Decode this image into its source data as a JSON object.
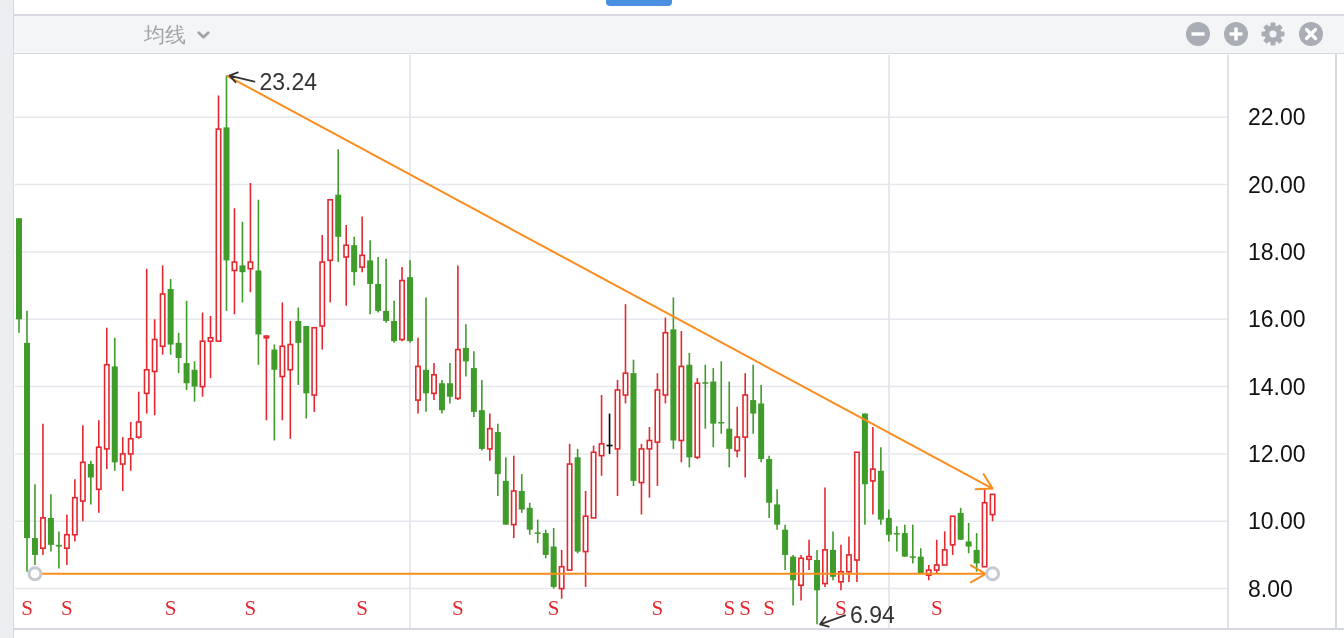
{
  "chart_data": {
    "type": "candlestick",
    "categories": [
      null,
      null,
      null,
      null,
      null,
      null,
      null,
      null,
      null,
      null,
      null,
      null,
      null,
      null,
      null,
      null,
      null,
      null,
      null,
      null,
      null,
      null,
      null,
      null,
      null,
      null,
      null,
      null,
      null,
      null,
      null,
      null,
      null,
      null,
      null,
      null,
      null,
      null,
      null,
      null,
      null,
      null,
      null,
      null,
      null,
      null,
      null,
      null,
      null,
      null,
      null,
      null,
      null,
      null,
      null,
      null,
      null,
      null,
      null,
      null,
      null,
      null,
      null,
      null,
      null,
      null,
      null,
      null,
      null,
      null,
      null,
      null,
      null,
      null,
      null,
      null,
      null,
      null,
      null,
      null,
      null,
      null,
      null,
      null,
      null,
      null,
      null,
      null,
      null,
      null,
      null,
      null,
      null,
      null,
      null,
      null,
      null,
      null,
      null,
      null,
      null,
      null,
      null,
      null,
      null,
      null,
      null,
      null,
      null,
      null,
      null,
      null,
      null,
      null,
      null,
      null,
      null,
      null,
      null,
      null,
      null,
      null,
      null,
      null,
      null,
      null,
      null,
      null,
      null,
      null,
      null,
      null,
      null,
      null,
      null,
      null,
      null,
      null,
      null,
      null,
      null,
      null,
      null,
      null,
      null,
      null,
      null,
      null,
      null,
      null,
      null,
      null
    ],
    "ohlc": [
      [
        19.0,
        19.0,
        15.6,
        16.0
      ],
      [
        15.3,
        16.25,
        8.5,
        9.5
      ],
      [
        9.5,
        11.1,
        8.7,
        9.0
      ],
      [
        9.2,
        12.9,
        9.0,
        10.1
      ],
      [
        10.1,
        10.8,
        9.1,
        9.3
      ],
      [
        9.3,
        9.7,
        8.6,
        9.25
      ],
      [
        9.2,
        10.2,
        8.7,
        9.6
      ],
      [
        9.6,
        11.25,
        9.4,
        10.7
      ],
      [
        10.6,
        12.85,
        10.0,
        11.75
      ],
      [
        11.7,
        11.8,
        10.5,
        11.3
      ],
      [
        10.95,
        13.0,
        10.25,
        12.2
      ],
      [
        12.15,
        15.75,
        11.55,
        14.65
      ],
      [
        14.6,
        15.45,
        11.5,
        11.75
      ],
      [
        11.7,
        12.5,
        10.9,
        12.0
      ],
      [
        12.0,
        12.95,
        11.5,
        12.45
      ],
      [
        12.5,
        13.85,
        12.45,
        12.95
      ],
      [
        13.8,
        17.5,
        13.2,
        14.5
      ],
      [
        14.45,
        16.0,
        13.15,
        15.4
      ],
      [
        15.2,
        17.6,
        14.95,
        16.75
      ],
      [
        16.9,
        17.2,
        14.95,
        15.25
      ],
      [
        15.3,
        15.6,
        14.4,
        14.85
      ],
      [
        14.7,
        16.55,
        13.9,
        14.1
      ],
      [
        14.5,
        14.75,
        13.55,
        14.0
      ],
      [
        14.0,
        16.2,
        13.7,
        15.35
      ],
      [
        15.35,
        16.1,
        14.25,
        15.45
      ],
      [
        15.35,
        22.65,
        15.35,
        21.65
      ],
      [
        21.7,
        23.24,
        16.25,
        17.75
      ],
      [
        17.45,
        19.3,
        16.15,
        17.7
      ],
      [
        17.6,
        18.9,
        16.5,
        17.4
      ],
      [
        17.5,
        20.05,
        16.8,
        17.7
      ],
      [
        17.45,
        19.55,
        14.65,
        15.55
      ],
      [
        15.45,
        15.52,
        13.0,
        15.5
      ],
      [
        15.1,
        15.25,
        12.4,
        14.5
      ],
      [
        14.3,
        16.5,
        13.0,
        15.2
      ],
      [
        14.5,
        15.95,
        12.45,
        15.25
      ],
      [
        15.95,
        16.35,
        14.05,
        15.3
      ],
      [
        15.8,
        15.8,
        13.05,
        13.8
      ],
      [
        13.75,
        15.75,
        13.25,
        15.75
      ],
      [
        15.8,
        18.5,
        15.1,
        17.7
      ],
      [
        17.75,
        19.55,
        16.5,
        19.55
      ],
      [
        19.7,
        21.05,
        17.7,
        18.45
      ],
      [
        17.85,
        18.8,
        16.4,
        18.2
      ],
      [
        18.2,
        18.45,
        17.0,
        17.4
      ],
      [
        17.55,
        19.05,
        17.4,
        17.9
      ],
      [
        17.75,
        18.35,
        16.15,
        17.05
      ],
      [
        17.05,
        17.85,
        16.2,
        16.25
      ],
      [
        16.25,
        17.8,
        15.9,
        15.95
      ],
      [
        15.95,
        16.55,
        15.3,
        15.35
      ],
      [
        15.4,
        17.55,
        15.35,
        17.15
      ],
      [
        17.25,
        17.75,
        15.3,
        15.35
      ],
      [
        13.6,
        15.45,
        13.2,
        14.6
      ],
      [
        14.5,
        16.65,
        13.25,
        13.8
      ],
      [
        13.8,
        14.7,
        13.6,
        14.35
      ],
      [
        14.1,
        14.2,
        13.2,
        13.3
      ],
      [
        14.1,
        14.7,
        13.5,
        13.7
      ],
      [
        13.65,
        17.6,
        13.6,
        15.1
      ],
      [
        15.15,
        15.85,
        14.3,
        14.75
      ],
      [
        14.55,
        15.05,
        13.1,
        13.25
      ],
      [
        13.3,
        14.2,
        12.1,
        12.15
      ],
      [
        12.15,
        13.2,
        11.8,
        12.75
      ],
      [
        12.65,
        12.9,
        10.75,
        11.4
      ],
      [
        11.2,
        11.9,
        9.9,
        9.9
      ],
      [
        9.9,
        11.95,
        9.5,
        10.9
      ],
      [
        10.9,
        11.4,
        10.25,
        10.35
      ],
      [
        10.4,
        10.55,
        9.6,
        9.75
      ],
      [
        9.67,
        10.05,
        9.35,
        9.65
      ],
      [
        9.65,
        9.75,
        8.9,
        9.0
      ],
      [
        9.25,
        9.8,
        8.0,
        8.05
      ],
      [
        8.0,
        9.15,
        7.7,
        8.65
      ],
      [
        8.55,
        12.3,
        8.55,
        11.7
      ],
      [
        11.9,
        12.15,
        9.05,
        9.1
      ],
      [
        9.1,
        10.9,
        8.05,
        10.15
      ],
      [
        10.1,
        12.25,
        10.1,
        12.05
      ],
      [
        11.95,
        13.75,
        11.35,
        12.3
      ],
      [
        12.25,
        13.2,
        12.0,
        12.25
      ],
      [
        12.15,
        14.2,
        10.75,
        13.9
      ],
      [
        13.75,
        16.45,
        13.5,
        14.4
      ],
      [
        14.4,
        14.8,
        11.05,
        11.2
      ],
      [
        11.15,
        12.3,
        10.2,
        12.15
      ],
      [
        12.15,
        12.8,
        10.7,
        12.4
      ],
      [
        12.35,
        14.4,
        11.05,
        13.9
      ],
      [
        13.75,
        16.05,
        13.5,
        15.6
      ],
      [
        15.7,
        16.65,
        12.15,
        12.4
      ],
      [
        12.4,
        15.65,
        11.75,
        14.6
      ],
      [
        14.65,
        15.0,
        11.6,
        11.9
      ],
      [
        11.9,
        14.25,
        11.85,
        14.1
      ],
      [
        14.13,
        14.65,
        12.75,
        14.1
      ],
      [
        14.15,
        14.55,
        12.2,
        12.9
      ],
      [
        12.95,
        14.75,
        12.6,
        12.93
      ],
      [
        12.75,
        14.15,
        11.6,
        12.15
      ],
      [
        12.1,
        13.4,
        11.9,
        12.5
      ],
      [
        12.5,
        14.4,
        11.3,
        13.75
      ],
      [
        13.6,
        14.65,
        12.6,
        13.2
      ],
      [
        13.5,
        14.05,
        11.75,
        11.85
      ],
      [
        11.85,
        11.95,
        10.1,
        10.55
      ],
      [
        10.5,
        10.95,
        9.75,
        9.9
      ],
      [
        9.75,
        9.9,
        8.55,
        9.0
      ],
      [
        8.95,
        9.0,
        7.5,
        8.25
      ],
      [
        8.1,
        9.0,
        7.65,
        8.9
      ],
      [
        8.87,
        9.45,
        8.55,
        8.95
      ],
      [
        8.85,
        9.15,
        6.94,
        7.95
      ],
      [
        8.15,
        11.0,
        8.05,
        9.15
      ],
      [
        9.15,
        9.7,
        8.25,
        8.35
      ],
      [
        8.2,
        9.3,
        7.95,
        8.5
      ],
      [
        8.5,
        9.55,
        8.2,
        9.0
      ],
      [
        8.85,
        12.05,
        8.2,
        12.05
      ],
      [
        13.2,
        13.2,
        9.9,
        11.1
      ],
      [
        11.2,
        12.8,
        10.2,
        11.55
      ],
      [
        11.5,
        12.2,
        9.9,
        10.05
      ],
      [
        10.1,
        10.35,
        9.4,
        9.6
      ],
      [
        9.65,
        9.85,
        9.1,
        9.63
      ],
      [
        9.65,
        9.9,
        8.95,
        8.95
      ],
      [
        8.96,
        9.9,
        8.75,
        8.94
      ],
      [
        8.95,
        9.2,
        8.45,
        8.45
      ],
      [
        8.4,
        8.7,
        8.25,
        8.55
      ],
      [
        8.55,
        9.45,
        8.45,
        8.7
      ],
      [
        8.7,
        9.7,
        8.7,
        9.15
      ],
      [
        9.3,
        10.15,
        9.0,
        10.15
      ],
      [
        10.25,
        10.4,
        9.45,
        9.45
      ],
      [
        9.4,
        9.95,
        9.05,
        9.25
      ],
      [
        9.15,
        9.65,
        8.5,
        8.75
      ],
      [
        8.65,
        10.95,
        8.65,
        10.55
      ],
      [
        10.2,
        10.8,
        10.0,
        10.8
      ],
      null,
      null,
      null,
      null,
      null,
      null,
      null,
      null,
      null,
      null,
      null,
      null,
      null,
      null,
      null,
      null,
      null,
      null,
      null,
      null,
      null,
      null,
      null,
      null,
      null,
      null,
      null,
      null,
      null
    ],
    "colors": [
      "#3f9b2a",
      "#3f9b2a",
      "#3f9b2a",
      "#e3292f",
      "#3f9b2a",
      "#3f9b2a",
      "#e3292f",
      "#e3292f",
      "#e3292f",
      "#3f9b2a",
      "#e3292f",
      "#e3292f",
      "#3f9b2a",
      "#e3292f",
      "#e3292f",
      "#e3292f",
      "#e3292f",
      "#e3292f",
      "#e3292f",
      "#3f9b2a",
      "#3f9b2a",
      "#3f9b2a",
      "#3f9b2a",
      "#e3292f",
      "#e3292f",
      "#e3292f",
      "#3f9b2a",
      "#e3292f",
      "#3f9b2a",
      "#e3292f",
      "#3f9b2a",
      "#e3292f",
      "#3f9b2a",
      "#e3292f",
      "#e3292f",
      "#3f9b2a",
      "#3f9b2a",
      "#e3292f",
      "#e3292f",
      "#e3292f",
      "#3f9b2a",
      "#e3292f",
      "#3f9b2a",
      "#e3292f",
      "#3f9b2a",
      "#3f9b2a",
      "#3f9b2a",
      "#3f9b2a",
      "#e3292f",
      "#3f9b2a",
      "#e3292f",
      "#3f9b2a",
      "#e3292f",
      "#3f9b2a",
      "#3f9b2a",
      "#e3292f",
      "#3f9b2a",
      "#3f9b2a",
      "#3f9b2a",
      "#e3292f",
      "#3f9b2a",
      "#3f9b2a",
      "#e3292f",
      "#3f9b2a",
      "#3f9b2a",
      "#3f9b2a",
      "#3f9b2a",
      "#3f9b2a",
      "#e3292f",
      "#e3292f",
      "#3f9b2a",
      "#e3292f",
      "#e3292f",
      "#e3292f",
      "#000000",
      "#e3292f",
      "#e3292f",
      "#3f9b2a",
      "#e3292f",
      "#e3292f",
      "#e3292f",
      "#e3292f",
      "#3f9b2a",
      "#e3292f",
      "#3f9b2a",
      "#e3292f",
      "#3f9b2a",
      "#3f9b2a",
      "#3f9b2a",
      "#3f9b2a",
      "#e3292f",
      "#e3292f",
      "#3f9b2a",
      "#3f9b2a",
      "#3f9b2a",
      "#3f9b2a",
      "#3f9b2a",
      "#3f9b2a",
      "#e3292f",
      "#e3292f",
      "#3f9b2a",
      "#e3292f",
      "#3f9b2a",
      "#e3292f",
      "#e3292f",
      "#e3292f",
      "#3f9b2a",
      "#e3292f",
      "#3f9b2a",
      "#3f9b2a",
      "#3f9b2a",
      "#3f9b2a",
      "#3f9b2a",
      "#3f9b2a",
      "#e3292f",
      "#e3292f",
      "#e3292f",
      "#e3292f",
      "#3f9b2a",
      "#3f9b2a",
      "#3f9b2a",
      "#e3292f",
      "#e3292f",
      null,
      null,
      null,
      null,
      null,
      null,
      null,
      null,
      null,
      null,
      null,
      null,
      null,
      null,
      null,
      null,
      null,
      null,
      null,
      null,
      null,
      null,
      null,
      null,
      null,
      null,
      null,
      null,
      null
    ],
    "value_labels": [
      null,
      "S",
      null,
      null,
      null,
      null,
      "S",
      null,
      null,
      null,
      null,
      null,
      null,
      null,
      null,
      null,
      null,
      null,
      null,
      "S",
      null,
      null,
      null,
      null,
      null,
      null,
      null,
      null,
      null,
      "S",
      null,
      null,
      null,
      null,
      null,
      null,
      null,
      null,
      null,
      null,
      null,
      null,
      null,
      "S",
      null,
      null,
      null,
      null,
      null,
      null,
      null,
      null,
      null,
      null,
      null,
      "S",
      null,
      null,
      null,
      null,
      null,
      null,
      null,
      null,
      null,
      null,
      null,
      "S",
      null,
      null,
      null,
      null,
      null,
      null,
      null,
      null,
      null,
      null,
      null,
      null,
      "S",
      null,
      null,
      null,
      null,
      null,
      null,
      null,
      null,
      "S",
      null,
      "S",
      null,
      null,
      "S",
      null,
      null,
      null,
      null,
      null,
      null,
      null,
      null,
      "S",
      null,
      null,
      null,
      null,
      null,
      null,
      null,
      null,
      null,
      null,
      null,
      "S",
      null,
      null,
      null,
      null,
      null,
      null,
      null,
      null,
      null,
      null,
      null,
      null,
      null,
      null,
      null,
      null,
      null,
      null,
      null,
      null,
      null,
      null,
      null,
      null,
      null,
      null,
      null,
      null,
      null,
      null,
      null,
      null,
      null,
      null,
      null,
      null
    ],
    "series": [
      {
        "type": "line",
        "color": "#fb8c1e",
        "marker": "none",
        "values": [
          null,
          null,
          null,
          null,
          null,
          null,
          null,
          null,
          null,
          null,
          null,
          null,
          null,
          null,
          null,
          null,
          null,
          null,
          null,
          null,
          null,
          null,
          null,
          null,
          null,
          null,
          23.24,
          null,
          null,
          null,
          null,
          null,
          null,
          null,
          null,
          null,
          null,
          null,
          null,
          null,
          null,
          null,
          null,
          null,
          null,
          null,
          null,
          null,
          null,
          null,
          null,
          null,
          null,
          null,
          null,
          null,
          null,
          null,
          null,
          null,
          null,
          null,
          null,
          null,
          null,
          null,
          null,
          null,
          null,
          null,
          null,
          null,
          null,
          null,
          null,
          null,
          null,
          null,
          null,
          null,
          null,
          null,
          null,
          null,
          null,
          null,
          null,
          null,
          null,
          null,
          null,
          null,
          null,
          null,
          null,
          null,
          null,
          null,
          null,
          null,
          null,
          null,
          null,
          null,
          null,
          null,
          null,
          null,
          null,
          null,
          null,
          null,
          null,
          null,
          null,
          null,
          null,
          null,
          null,
          null,
          null,
          null,
          10.97,
          null,
          null,
          null,
          null,
          null,
          null,
          null,
          null,
          null,
          null,
          null,
          null,
          null,
          null,
          null,
          null,
          null,
          null,
          null,
          null,
          null,
          null,
          null,
          null,
          null,
          null,
          null,
          null,
          null
        ]
      },
      {
        "type": "line",
        "color": "#fb8c1e",
        "marker": "circle",
        "values": [
          null,
          null,
          8.44,
          null,
          null,
          null,
          null,
          null,
          null,
          null,
          null,
          null,
          null,
          null,
          null,
          null,
          null,
          null,
          null,
          null,
          null,
          null,
          null,
          null,
          null,
          null,
          null,
          null,
          null,
          null,
          null,
          null,
          null,
          null,
          null,
          null,
          null,
          null,
          null,
          null,
          null,
          null,
          null,
          null,
          null,
          null,
          null,
          null,
          null,
          null,
          null,
          null,
          null,
          null,
          null,
          null,
          null,
          null,
          null,
          null,
          null,
          null,
          null,
          null,
          null,
          null,
          null,
          null,
          null,
          null,
          null,
          null,
          null,
          null,
          null,
          null,
          null,
          null,
          null,
          null,
          null,
          null,
          null,
          null,
          null,
          null,
          null,
          null,
          null,
          null,
          null,
          null,
          null,
          null,
          null,
          null,
          null,
          null,
          null,
          null,
          null,
          null,
          null,
          null,
          null,
          null,
          null,
          null,
          null,
          null,
          null,
          null,
          null,
          null,
          null,
          null,
          null,
          null,
          null,
          null,
          null,
          null,
          8.44,
          null,
          null,
          null,
          null,
          null,
          null,
          null,
          null,
          null,
          null,
          null,
          null,
          null,
          null,
          null,
          null,
          null,
          null,
          null,
          null,
          null,
          null,
          null,
          null,
          null,
          null,
          null,
          null,
          null
        ]
      }
    ],
    "annotations": [
      "均线",
      "23.24",
      "6.94"
    ],
    "ylim": [
      6.83,
      23.85
    ],
    "yticks": [
      {
        "value": 8,
        "label": "8.00"
      },
      {
        "value": 10,
        "label": "10.00"
      },
      {
        "value": 12,
        "label": "12.00"
      },
      {
        "value": 14,
        "label": "14.00"
      },
      {
        "value": 16,
        "label": "16.00"
      },
      {
        "value": 18,
        "label": "18.00"
      },
      {
        "value": 20,
        "label": "20.00"
      },
      {
        "value": 22,
        "label": "22.00"
      }
    ],
    "grid": "y",
    "tick_labels": "y"
  }
}
